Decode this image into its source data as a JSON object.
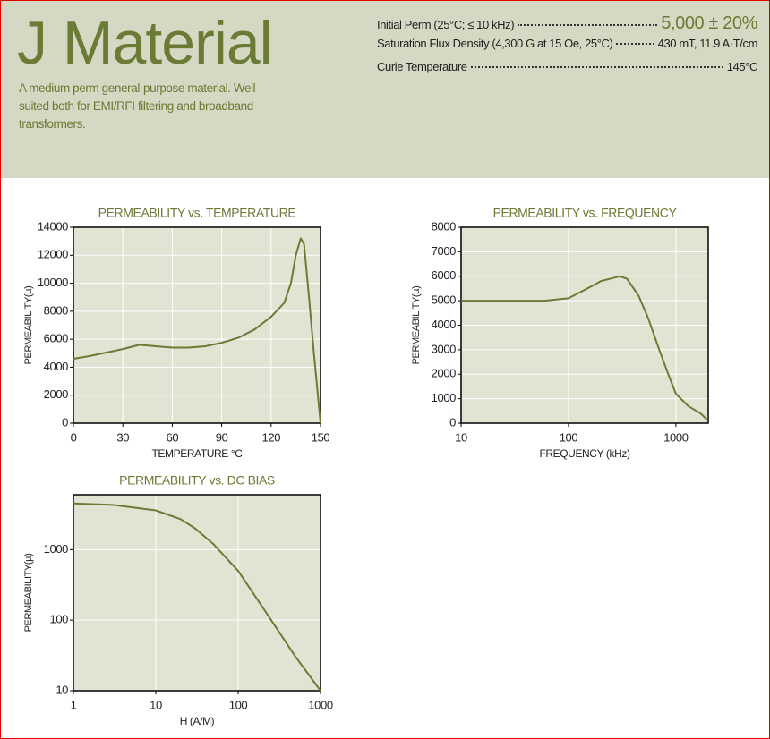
{
  "header": {
    "title": "J Material",
    "description": "A medium perm general-purpose material. Well suited both for EMI/RFI filtering and broadband transformers.",
    "specs": [
      {
        "label": "Initial Perm (25°C; ≤ 10 kHz)",
        "value": "5,000 ± 20%"
      },
      {
        "label": "Saturation Flux Density (4,300 G at 15 Oe, 25°C)",
        "value": "430 mT, 11.9 A·T/cm"
      },
      {
        "label": "Curie Temperature",
        "value": "145°C"
      }
    ]
  },
  "chart_data": [
    {
      "type": "line",
      "title": "PERMEABILITY vs. TEMPERATURE",
      "x_label": "TEMPERATURE °C",
      "y_label": "PERMEABILITY(µ)",
      "x": [
        0,
        10,
        20,
        30,
        40,
        50,
        60,
        70,
        80,
        90,
        100,
        110,
        120,
        128,
        132,
        135,
        138,
        140,
        143,
        146,
        150
      ],
      "values": [
        4600,
        4800,
        5050,
        5300,
        5600,
        5500,
        5400,
        5400,
        5500,
        5750,
        6100,
        6700,
        7600,
        8600,
        10000,
        12000,
        13200,
        12800,
        9000,
        5000,
        0
      ],
      "color": "#6b7a35",
      "xlim": [
        0,
        150
      ],
      "xticks": [
        0,
        30,
        60,
        90,
        120,
        150
      ],
      "ylim": [
        0,
        14000
      ],
      "yticks": [
        0,
        2000,
        4000,
        6000,
        8000,
        10000,
        12000,
        14000
      ],
      "grid": true
    },
    {
      "type": "line",
      "title": "PERMEABILITY vs. FREQUENCY",
      "x_label": "FREQUENCY (kHz)",
      "y_label": "PERMEABILITY(µ)",
      "x": [
        10,
        30,
        60,
        100,
        150,
        200,
        300,
        350,
        450,
        550,
        700,
        850,
        1000,
        1300,
        1700,
        2000
      ],
      "values": [
        5000,
        5000,
        5000,
        5100,
        5500,
        5800,
        6000,
        5900,
        5200,
        4300,
        3000,
        2000,
        1200,
        700,
        400,
        100
      ],
      "color": "#6b7a35",
      "xscale": "log",
      "xlim": [
        10,
        2000
      ],
      "xticks": [
        10,
        100,
        1000
      ],
      "ylim": [
        0,
        8000
      ],
      "yticks": [
        0,
        1000,
        2000,
        3000,
        4000,
        5000,
        6000,
        7000,
        8000
      ],
      "grid": true
    },
    {
      "type": "line",
      "title": "PERMEABILITY vs. DC BIAS",
      "x_label": "H (A/M)",
      "y_label": "PERMEABILITY(µ)",
      "x": [
        1,
        3,
        10,
        20,
        30,
        50,
        100,
        200,
        500,
        1000
      ],
      "values": [
        4500,
        4300,
        3600,
        2700,
        2000,
        1200,
        500,
        150,
        30,
        10
      ],
      "color": "#6b7a35",
      "xscale": "log",
      "yscale": "log",
      "xlim": [
        1,
        1000
      ],
      "xticks": [
        1,
        10,
        100,
        1000
      ],
      "ylim": [
        10,
        6000
      ],
      "yticks": [
        10,
        100,
        1000
      ],
      "grid": true
    }
  ]
}
